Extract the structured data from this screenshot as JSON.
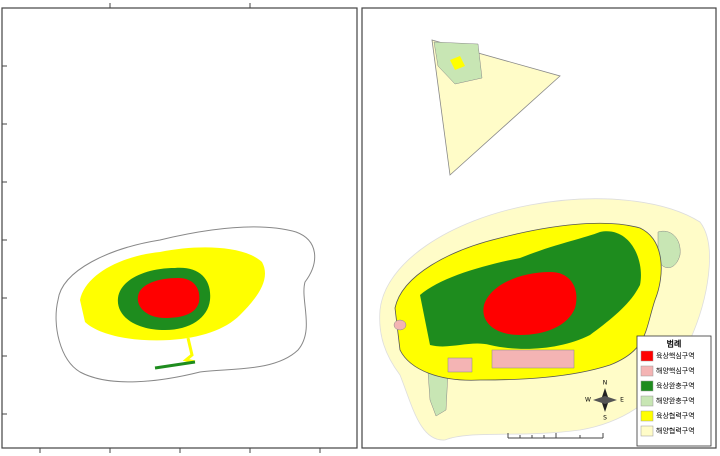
{
  "legend": {
    "title": "범례",
    "items": [
      {
        "label": "육상핵심구역",
        "color": "#ff0000"
      },
      {
        "label": "해양핵심구역",
        "color": "#f4b4b4"
      },
      {
        "label": "육상완충구역",
        "color": "#1e8c1e"
      },
      {
        "label": "해양완충구역",
        "color": "#c8e6b4"
      },
      {
        "label": "육상협력구역",
        "color": "#ffff00"
      },
      {
        "label": "해양협력구역",
        "color": "#fffcc8"
      }
    ]
  },
  "compass": {
    "n": "N",
    "e": "E",
    "s": "S",
    "w": "W"
  }
}
